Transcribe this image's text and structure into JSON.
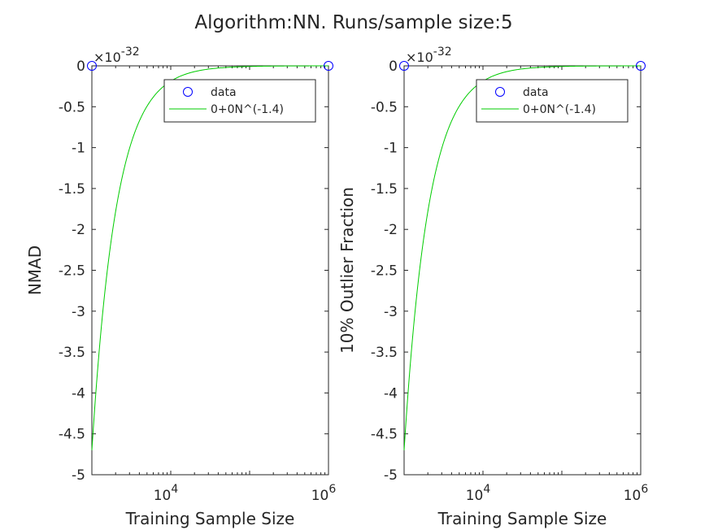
{
  "figure": {
    "title": "Algorithm:NN. Runs/sample size:5"
  },
  "colors": {
    "axis": "#262626",
    "data_marker": "#0000ff",
    "fit_line": "#00cc00",
    "background": "#ffffff"
  },
  "chart_data": [
    {
      "type": "line",
      "xscale": "log",
      "xlim": [
        1000,
        1000000
      ],
      "ylim": [
        -5,
        0
      ],
      "ylabel": "NMAD",
      "xlabel": "Training Sample Size",
      "y_exponent_label": "×10^-32",
      "y_exponent_base": "×10",
      "y_exponent_power": "-32",
      "y_ticks": [
        0,
        -0.5,
        -1,
        -1.5,
        -2,
        -2.5,
        -3,
        -3.5,
        -4,
        -4.5,
        -5
      ],
      "y_tick_labels": [
        "0",
        "-0.5",
        "-1",
        "-1.5",
        "-2",
        "-2.5",
        "-3",
        "-3.5",
        "-4",
        "-4.5",
        "-5"
      ],
      "x_ticks": [
        {
          "value": 10000,
          "base": "10",
          "exp": "4"
        },
        {
          "value": 1000000,
          "base": "10",
          "exp": "6"
        }
      ],
      "legend": {
        "position": "top-right",
        "entries": [
          "data",
          "0+0N^(-1.4)"
        ]
      },
      "series": [
        {
          "name": "data",
          "style": "marker",
          "marker": "circle",
          "x": [
            1000,
            1000000
          ],
          "y": [
            0,
            0
          ]
        },
        {
          "name": "0+0N^(-1.4)",
          "style": "line",
          "a": 0,
          "b": -1.4,
          "model": "y = -N^(b) scaled to reach -4.7 at N = 1000",
          "y_at_xmin": -4.7
        }
      ]
    },
    {
      "type": "line",
      "xscale": "log",
      "xlim": [
        1000,
        1000000
      ],
      "ylim": [
        -5,
        0
      ],
      "ylabel": "10% Outlier Fraction",
      "xlabel": "Training Sample Size",
      "y_exponent_label": "×10^-32",
      "y_exponent_base": "×10",
      "y_exponent_power": "-32",
      "y_ticks": [
        0,
        -0.5,
        -1,
        -1.5,
        -2,
        -2.5,
        -3,
        -3.5,
        -4,
        -4.5,
        -5
      ],
      "y_tick_labels": [
        "0",
        "-0.5",
        "-1",
        "-1.5",
        "-2",
        "-2.5",
        "-3",
        "-3.5",
        "-4",
        "-4.5",
        "-5"
      ],
      "x_ticks": [
        {
          "value": 10000,
          "base": "10",
          "exp": "4"
        },
        {
          "value": 1000000,
          "base": "10",
          "exp": "6"
        }
      ],
      "legend": {
        "position": "top-right",
        "entries": [
          "data",
          "0+0N^(-1.4)"
        ]
      },
      "series": [
        {
          "name": "data",
          "style": "marker",
          "marker": "circle",
          "x": [
            1000,
            1000000
          ],
          "y": [
            0,
            0
          ]
        },
        {
          "name": "0+0N^(-1.4)",
          "style": "line",
          "a": 0,
          "b": -1.4,
          "model": "y = -N^(b) scaled to reach -4.7 at N = 1000",
          "y_at_xmin": -4.7
        }
      ]
    }
  ]
}
